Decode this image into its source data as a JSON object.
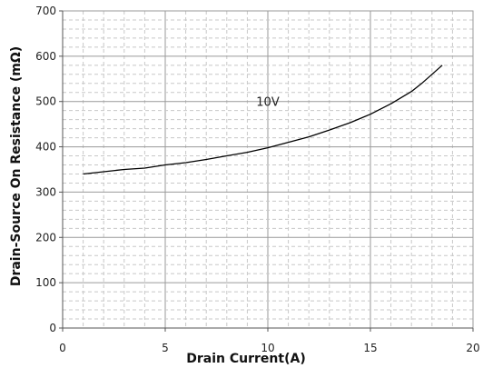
{
  "chart_data": {
    "type": "line",
    "title": "",
    "xlabel": "Drain Current(A)",
    "ylabel": "Drain-Source On Resistance (mΩ)",
    "xlim": [
      0,
      20
    ],
    "ylim": [
      0,
      700
    ],
    "x_ticks": [
      "0",
      "5",
      "10",
      "15",
      "20"
    ],
    "y_ticks": [
      "0",
      "100",
      "200",
      "300",
      "400",
      "500",
      "600",
      "700"
    ],
    "grid": true,
    "series": [
      {
        "label": "10V",
        "color": "#000000",
        "x": [
          1,
          2,
          3,
          4,
          5,
          6,
          7,
          8,
          9,
          10,
          11,
          12,
          13,
          14,
          15,
          16,
          17,
          17.5,
          18,
          18.5
        ],
        "y": [
          340,
          345,
          350,
          353,
          360,
          365,
          372,
          380,
          388,
          398,
          410,
          422,
          437,
          453,
          472,
          495,
          522,
          540,
          560,
          580
        ]
      }
    ],
    "annotations": [
      {
        "text": "10V",
        "x": 10,
        "y": 490
      }
    ]
  }
}
